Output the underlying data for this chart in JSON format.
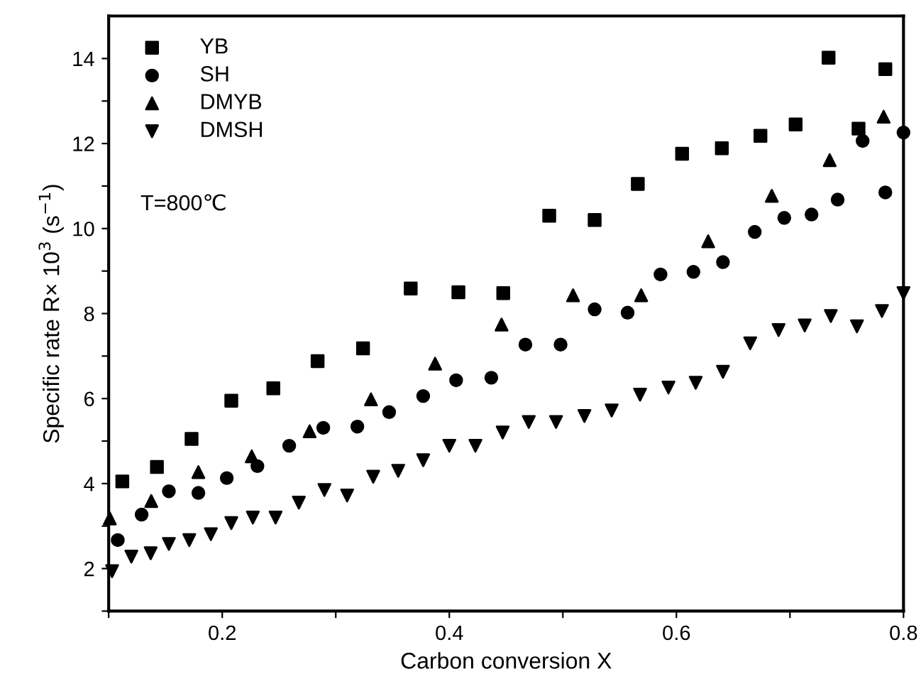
{
  "chart_data": {
    "type": "scatter",
    "xlabel": "Carbon conversion X",
    "ylabel": "Specific rate R× 10$^{3}$ (s$^{−1}$)",
    "xlim": [
      0.1,
      0.8
    ],
    "ylim": [
      1,
      15
    ],
    "xticks": [
      {
        "value": 0.1,
        "label": null
      },
      0.2,
      {
        "value": 0.3,
        "label": null
      },
      0.4,
      {
        "value": 0.5,
        "label": null
      },
      0.6,
      {
        "value": 0.7,
        "label": null
      },
      0.8
    ],
    "yticks": [
      {
        "value": 1,
        "label": null
      },
      2,
      {
        "value": 3,
        "label": null
      },
      4,
      {
        "value": 5,
        "label": null
      },
      6,
      {
        "value": 7,
        "label": null
      },
      8,
      {
        "value": 9,
        "label": null
      },
      10,
      {
        "value": 11,
        "label": null
      },
      12,
      {
        "value": 13,
        "label": null
      },
      14
    ],
    "grid": false,
    "legend": "top left",
    "annotations": [
      "T=800℃"
    ],
    "series": [
      {
        "name": "YB",
        "color": "#000000",
        "marker": "square",
        "x": [
          0.112,
          0.1425,
          0.173,
          0.208,
          0.245,
          0.284,
          0.324,
          0.366,
          0.408,
          0.4475,
          0.488,
          0.528,
          0.566,
          0.605,
          0.64,
          0.674,
          0.705,
          0.734,
          0.7604,
          0.784
        ],
        "values": [
          4.05,
          4.39,
          5.05,
          5.95,
          6.24,
          6.88,
          7.18,
          8.59,
          8.5,
          8.48,
          10.3,
          10.2,
          11.05,
          11.76,
          11.89,
          12.18,
          12.45,
          14.02,
          12.35,
          13.75
        ]
      },
      {
        "name": "SH",
        "color": "#000000",
        "marker": "circle",
        "x": [
          0.108,
          0.129,
          0.153,
          0.179,
          0.204,
          0.231,
          0.259,
          0.289,
          0.319,
          0.347,
          0.377,
          0.406,
          0.437,
          0.467,
          0.498,
          0.528,
          0.557,
          0.586,
          0.615,
          0.641,
          0.669,
          0.695,
          0.719,
          0.742,
          0.764,
          0.784,
          0.8
        ],
        "values": [
          2.67,
          3.27,
          3.82,
          3.78,
          4.13,
          4.41,
          4.89,
          5.31,
          5.34,
          5.68,
          6.06,
          6.43,
          6.49,
          7.27,
          7.27,
          8.1,
          8.02,
          8.92,
          8.98,
          9.21,
          9.92,
          10.25,
          10.33,
          10.68,
          12.06,
          10.85,
          12.26
        ]
      },
      {
        "name": "DMYB",
        "color": "#000000",
        "marker": "triangle",
        "x": [
          0.101,
          0.1375,
          0.179,
          0.226,
          0.277,
          0.331,
          0.3875,
          0.446,
          0.509,
          0.569,
          0.628,
          0.684,
          0.735,
          0.7825
        ],
        "values": [
          3.18,
          3.59,
          4.27,
          4.64,
          5.23,
          5.98,
          6.82,
          7.74,
          8.43,
          8.43,
          9.7,
          10.77,
          11.61,
          12.63
        ]
      },
      {
        "name": "DMSH",
        "color": "#000000",
        "marker": "triangle_down",
        "x": [
          0.103,
          0.12,
          0.137,
          0.153,
          0.171,
          0.19,
          0.208,
          0.227,
          0.247,
          0.2675,
          0.29,
          0.31,
          0.333,
          0.355,
          0.377,
          0.4,
          0.423,
          0.447,
          0.47,
          0.494,
          0.519,
          0.543,
          0.568,
          0.593,
          0.617,
          0.641,
          0.665,
          0.69,
          0.713,
          0.736,
          0.759,
          0.781,
          0.8
        ],
        "values": [
          1.94,
          2.28,
          2.36,
          2.58,
          2.67,
          2.81,
          3.07,
          3.2,
          3.2,
          3.55,
          3.85,
          3.72,
          4.16,
          4.3,
          4.55,
          4.89,
          4.89,
          5.2,
          5.45,
          5.45,
          5.59,
          5.72,
          6.09,
          6.26,
          6.37,
          6.63,
          7.3,
          7.61,
          7.72,
          7.94,
          7.7,
          8.06,
          8.48
        ]
      }
    ]
  }
}
